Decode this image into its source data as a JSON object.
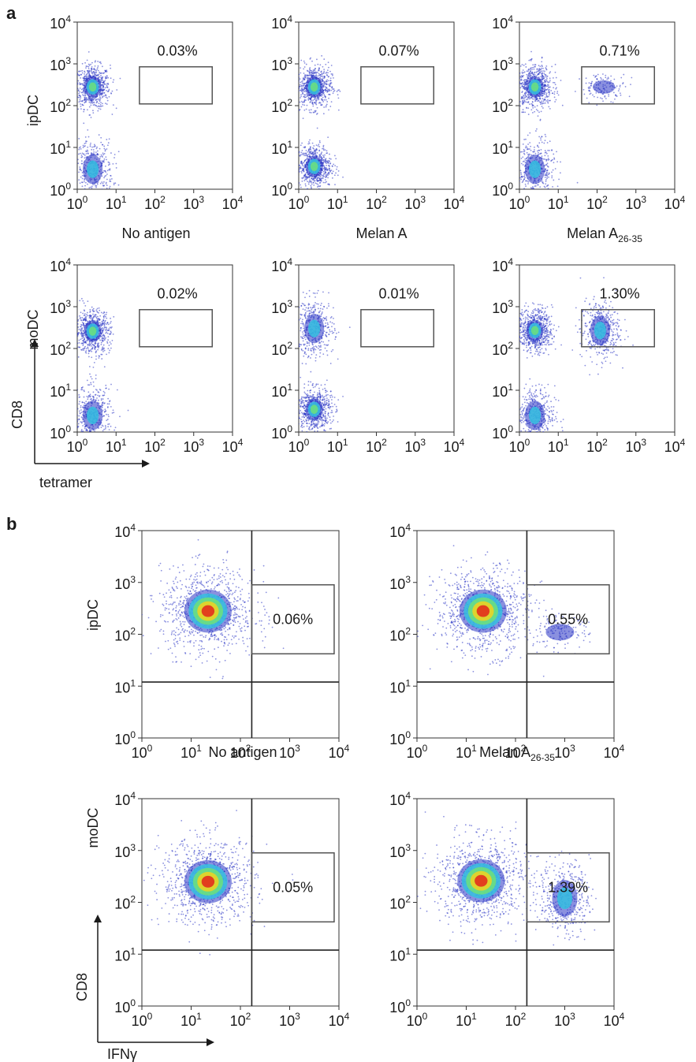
{
  "panel_labels": {
    "a": "a",
    "b": "b"
  },
  "row_labels": {
    "a_top": "ipDC",
    "a_bottom": "moDC",
    "b_top": "ipDC",
    "b_bottom": "moDC"
  },
  "axis_arrows": {
    "a": {
      "y": "CD8",
      "x": "tetramer"
    },
    "b": {
      "y": "CD8",
      "x": "IFNγ"
    }
  },
  "captions": {
    "a_col1": {
      "main": "No antigen",
      "sub": ""
    },
    "a_col2": {
      "main": "Melan A",
      "sub": ""
    },
    "a_col3": {
      "main": "Melan A",
      "sub": "26-35"
    },
    "b_col1": {
      "main": "No antigen",
      "sub": ""
    },
    "b_col2": {
      "main": "Melan A",
      "sub": "26-35"
    }
  },
  "colors": {
    "low_density": "#2a34c4",
    "mid_density": "#35c0e0",
    "high_density": "#6de07a",
    "peak_density": "#e3241b",
    "gate": "#555555",
    "quadrant": "#222222"
  },
  "chart_data": [
    {
      "id": "a-ipDC-no-antigen",
      "type": "scatter",
      "panel": "a",
      "row": "ipDC",
      "condition": "No antigen",
      "x_axis": "tetramer",
      "y_axis": "CD8",
      "xscale": "log",
      "yscale": "log",
      "xlim": [
        1,
        10000
      ],
      "ylim": [
        1,
        10000
      ],
      "xticks": [
        "10^0",
        "10^1",
        "10^2",
        "10^3",
        "10^4"
      ],
      "yticks": [
        "10^0",
        "10^1",
        "10^2",
        "10^3",
        "10^4"
      ],
      "gate": {
        "x": [
          40,
          3000
        ],
        "y": [
          110,
          850
        ],
        "percent": "0.03%"
      },
      "populations": [
        {
          "x": 2.5,
          "y": 280,
          "density": "high"
        },
        {
          "x": 2.5,
          "y": 3,
          "density": "mid"
        }
      ]
    },
    {
      "id": "a-ipDC-melan-a",
      "type": "scatter",
      "panel": "a",
      "row": "ipDC",
      "condition": "Melan A",
      "x_axis": "tetramer",
      "y_axis": "CD8",
      "xscale": "log",
      "yscale": "log",
      "xlim": [
        1,
        10000
      ],
      "ylim": [
        1,
        10000
      ],
      "xticks": [
        "10^0",
        "10^1",
        "10^2",
        "10^3",
        "10^4"
      ],
      "yticks": [
        "10^0",
        "10^1",
        "10^2",
        "10^3",
        "10^4"
      ],
      "gate": {
        "x": [
          40,
          3000
        ],
        "y": [
          110,
          850
        ],
        "percent": "0.07%"
      },
      "populations": [
        {
          "x": 2.5,
          "y": 280,
          "density": "high"
        },
        {
          "x": 2.5,
          "y": 3.5,
          "density": "high"
        }
      ]
    },
    {
      "id": "a-ipDC-melan-a-26-35",
      "type": "scatter",
      "panel": "a",
      "row": "ipDC",
      "condition": "Melan A 26-35",
      "x_axis": "tetramer",
      "y_axis": "CD8",
      "xscale": "log",
      "yscale": "log",
      "xlim": [
        1,
        10000
      ],
      "ylim": [
        1,
        10000
      ],
      "xticks": [
        "10^0",
        "10^1",
        "10^2",
        "10^3",
        "10^4"
      ],
      "yticks": [
        "10^0",
        "10^1",
        "10^2",
        "10^3",
        "10^4"
      ],
      "gate": {
        "x": [
          40,
          3000
        ],
        "y": [
          110,
          850
        ],
        "percent": "0.71%"
      },
      "populations": [
        {
          "x": 2.5,
          "y": 280,
          "density": "high"
        },
        {
          "x": 2.5,
          "y": 3,
          "density": "mid"
        },
        {
          "x": 150,
          "y": 280,
          "density": "low"
        }
      ]
    },
    {
      "id": "a-moDC-no-antigen",
      "type": "scatter",
      "panel": "a",
      "row": "moDC",
      "condition": "No antigen",
      "x_axis": "tetramer",
      "y_axis": "CD8",
      "xscale": "log",
      "yscale": "log",
      "xlim": [
        1,
        10000
      ],
      "ylim": [
        1,
        10000
      ],
      "xticks": [
        "10^0",
        "10^1",
        "10^2",
        "10^3",
        "10^4"
      ],
      "yticks": [
        "10^0",
        "10^1",
        "10^2",
        "10^3",
        "10^4"
      ],
      "gate": {
        "x": [
          40,
          3000
        ],
        "y": [
          110,
          850
        ],
        "percent": "0.02%"
      },
      "populations": [
        {
          "x": 2.5,
          "y": 260,
          "density": "high"
        },
        {
          "x": 2.5,
          "y": 2.5,
          "density": "mid"
        }
      ]
    },
    {
      "id": "a-moDC-melan-a",
      "type": "scatter",
      "panel": "a",
      "row": "moDC",
      "condition": "Melan A",
      "x_axis": "tetramer",
      "y_axis": "CD8",
      "xscale": "log",
      "yscale": "log",
      "xlim": [
        1,
        10000
      ],
      "ylim": [
        1,
        10000
      ],
      "xticks": [
        "10^0",
        "10^1",
        "10^2",
        "10^3",
        "10^4"
      ],
      "yticks": [
        "10^0",
        "10^1",
        "10^2",
        "10^3",
        "10^4"
      ],
      "gate": {
        "x": [
          40,
          3000
        ],
        "y": [
          110,
          850
        ],
        "percent": "0.01%"
      },
      "populations": [
        {
          "x": 2.5,
          "y": 300,
          "density": "mid"
        },
        {
          "x": 2.5,
          "y": 3.5,
          "density": "high"
        }
      ]
    },
    {
      "id": "a-moDC-melan-a-26-35",
      "type": "scatter",
      "panel": "a",
      "row": "moDC",
      "condition": "Melan A 26-35",
      "x_axis": "tetramer",
      "y_axis": "CD8",
      "xscale": "log",
      "yscale": "log",
      "xlim": [
        1,
        10000
      ],
      "ylim": [
        1,
        10000
      ],
      "xticks": [
        "10^0",
        "10^1",
        "10^2",
        "10^3",
        "10^4"
      ],
      "yticks": [
        "10^0",
        "10^1",
        "10^2",
        "10^3",
        "10^4"
      ],
      "gate": {
        "x": [
          40,
          3000
        ],
        "y": [
          110,
          850
        ],
        "percent": "1.30%"
      },
      "populations": [
        {
          "x": 2.5,
          "y": 270,
          "density": "high"
        },
        {
          "x": 2.5,
          "y": 2.5,
          "density": "mid"
        },
        {
          "x": 120,
          "y": 270,
          "density": "mid"
        }
      ]
    },
    {
      "id": "b-ipDC-no-antigen",
      "type": "scatter",
      "panel": "b",
      "row": "ipDC",
      "condition": "No antigen",
      "x_axis": "IFNγ",
      "y_axis": "CD8",
      "xscale": "log",
      "yscale": "log",
      "xlim": [
        1,
        10000
      ],
      "ylim": [
        1,
        10000
      ],
      "xticks": [
        "10^0",
        "10^1",
        "10^2",
        "10^3",
        "10^4"
      ],
      "yticks": [
        "10^0",
        "10^1",
        "10^2",
        "10^3",
        "10^4"
      ],
      "quadrant": {
        "x": 170,
        "y": 12
      },
      "gate": {
        "x": [
          170,
          8000
        ],
        "y": [
          42,
          900
        ],
        "percent": "0.06%"
      },
      "populations": [
        {
          "x": 22,
          "y": 280,
          "density": "peak"
        }
      ]
    },
    {
      "id": "b-ipDC-melan-a-26-35",
      "type": "scatter",
      "panel": "b",
      "row": "ipDC",
      "condition": "Melan A 26-35",
      "x_axis": "IFNγ",
      "y_axis": "CD8",
      "xscale": "log",
      "yscale": "log",
      "xlim": [
        1,
        10000
      ],
      "ylim": [
        1,
        10000
      ],
      "xticks": [
        "10^0",
        "10^1",
        "10^2",
        "10^3",
        "10^4"
      ],
      "yticks": [
        "10^0",
        "10^1",
        "10^2",
        "10^3",
        "10^4"
      ],
      "quadrant": {
        "x": 170,
        "y": 12
      },
      "gate": {
        "x": [
          170,
          8000
        ],
        "y": [
          42,
          900
        ],
        "percent": "0.55%"
      },
      "populations": [
        {
          "x": 22,
          "y": 280,
          "density": "peak"
        },
        {
          "x": 800,
          "y": 110,
          "density": "low"
        }
      ]
    },
    {
      "id": "b-moDC-no-antigen",
      "type": "scatter",
      "panel": "b",
      "row": "moDC",
      "condition": "No antigen",
      "x_axis": "IFNγ",
      "y_axis": "CD8",
      "xscale": "log",
      "yscale": "log",
      "xlim": [
        1,
        10000
      ],
      "ylim": [
        1,
        10000
      ],
      "xticks": [
        "10^0",
        "10^1",
        "10^2",
        "10^3",
        "10^4"
      ],
      "yticks": [
        "10^0",
        "10^1",
        "10^2",
        "10^3",
        "10^4"
      ],
      "quadrant": {
        "x": 170,
        "y": 12
      },
      "gate": {
        "x": [
          170,
          8000
        ],
        "y": [
          42,
          900
        ],
        "percent": "0.05%"
      },
      "populations": [
        {
          "x": 22,
          "y": 250,
          "density": "peak"
        }
      ]
    },
    {
      "id": "b-moDC-melan-a-26-35",
      "type": "scatter",
      "panel": "b",
      "row": "moDC",
      "condition": "Melan A 26-35",
      "x_axis": "IFNγ",
      "y_axis": "CD8",
      "xscale": "log",
      "yscale": "log",
      "xlim": [
        1,
        10000
      ],
      "ylim": [
        1,
        10000
      ],
      "xticks": [
        "10^0",
        "10^1",
        "10^2",
        "10^3",
        "10^4"
      ],
      "yticks": [
        "10^0",
        "10^1",
        "10^2",
        "10^3",
        "10^4"
      ],
      "quadrant": {
        "x": 170,
        "y": 12
      },
      "gate": {
        "x": [
          170,
          8000
        ],
        "y": [
          42,
          900
        ],
        "percent": "1.39%"
      },
      "populations": [
        {
          "x": 20,
          "y": 260,
          "density": "peak"
        },
        {
          "x": 1000,
          "y": 120,
          "density": "mid"
        }
      ]
    }
  ]
}
